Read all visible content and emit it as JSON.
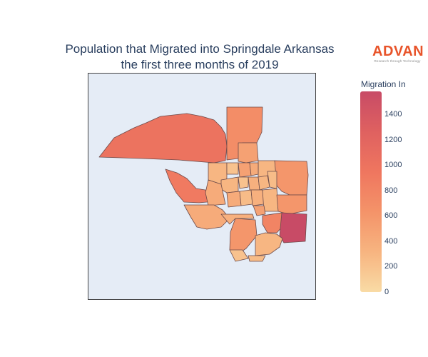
{
  "title_line1": "Population that Migrated into Springdale Arkansas",
  "title_line2": "the first three months of 2019",
  "logo": {
    "word": "ADVAN",
    "tagline": "Research through Technology"
  },
  "colorbar": {
    "title": "Migration In",
    "min": 0,
    "max": 1580,
    "ticks": [
      "0",
      "200",
      "400",
      "600",
      "800",
      "1000",
      "1200",
      "1400"
    ],
    "colors": [
      "#f9dba5",
      "#f7b480",
      "#f49369",
      "#ef765f",
      "#df6160",
      "#c84b66"
    ]
  },
  "map": {
    "background": "#e5ecf6",
    "region_values": [
      1000,
      700,
      500,
      300,
      600,
      900,
      300,
      200,
      500,
      400,
      300,
      200,
      350,
      300,
      250,
      400,
      400,
      250,
      350,
      300,
      600,
      500,
      400,
      350,
      600,
      800,
      1580,
      300,
      200,
      250
    ]
  }
}
